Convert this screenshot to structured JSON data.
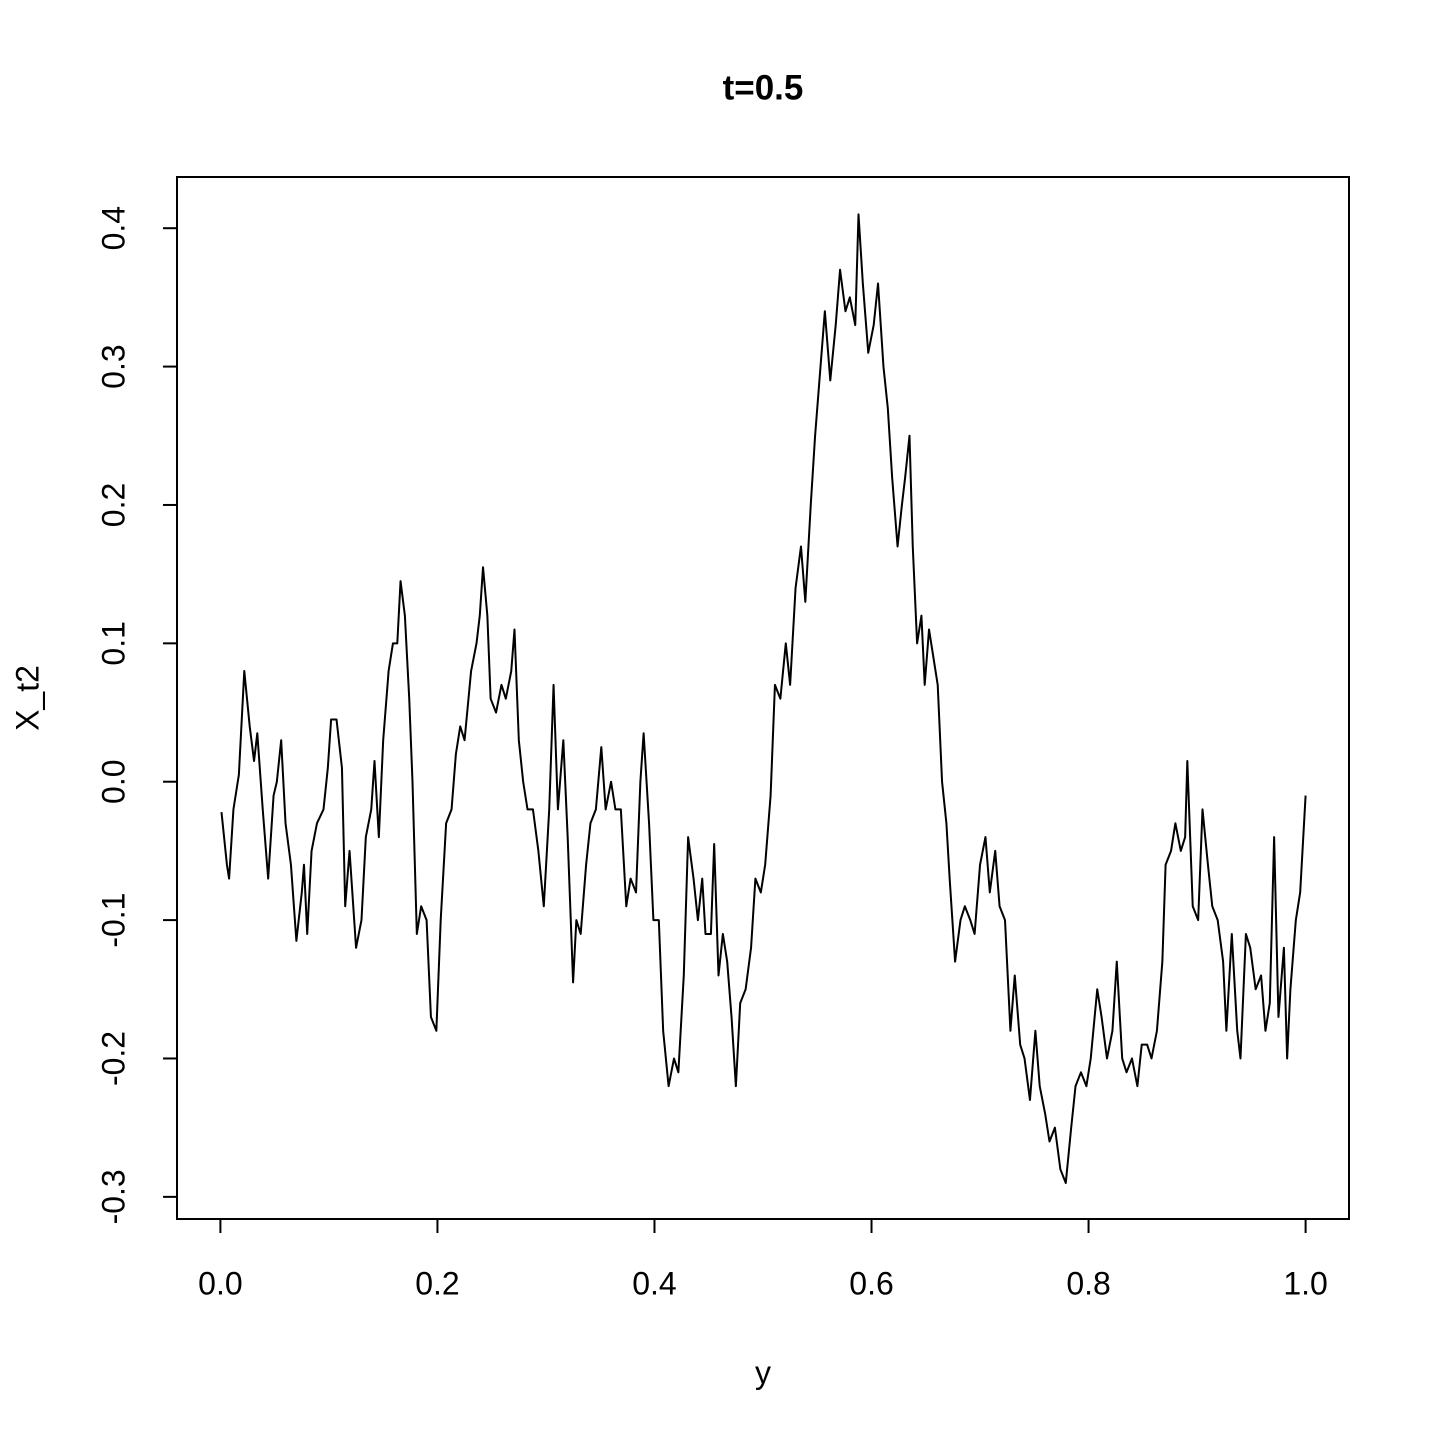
{
  "chart_data": {
    "type": "line",
    "title": "t=0.5",
    "x_label": "y",
    "y_label": "X_t2",
    "x": [
      0.001,
      0.006,
      0.008,
      0.012,
      0.017,
      0.022,
      0.027,
      0.031,
      0.034,
      0.039,
      0.044,
      0.049,
      0.052,
      0.056,
      0.06,
      0.065,
      0.07,
      0.075,
      0.077,
      0.08,
      0.084,
      0.089,
      0.095,
      0.099,
      0.102,
      0.107,
      0.112,
      0.115,
      0.119,
      0.125,
      0.13,
      0.134,
      0.139,
      0.142,
      0.146,
      0.15,
      0.155,
      0.159,
      0.163,
      0.166,
      0.17,
      0.174,
      0.177,
      0.181,
      0.185,
      0.19,
      0.194,
      0.199,
      0.203,
      0.208,
      0.213,
      0.217,
      0.221,
      0.225,
      0.231,
      0.236,
      0.239,
      0.242,
      0.246,
      0.249,
      0.254,
      0.259,
      0.263,
      0.268,
      0.271,
      0.275,
      0.279,
      0.283,
      0.288,
      0.293,
      0.298,
      0.303,
      0.307,
      0.311,
      0.316,
      0.32,
      0.325,
      0.328,
      0.332,
      0.337,
      0.341,
      0.346,
      0.351,
      0.355,
      0.36,
      0.364,
      0.369,
      0.374,
      0.378,
      0.383,
      0.387,
      0.39,
      0.395,
      0.399,
      0.404,
      0.408,
      0.413,
      0.418,
      0.422,
      0.427,
      0.431,
      0.436,
      0.44,
      0.444,
      0.447,
      0.452,
      0.455,
      0.459,
      0.463,
      0.467,
      0.471,
      0.475,
      0.479,
      0.484,
      0.489,
      0.493,
      0.498,
      0.502,
      0.507,
      0.511,
      0.516,
      0.521,
      0.525,
      0.53,
      0.535,
      0.539,
      0.544,
      0.548,
      0.553,
      0.557,
      0.562,
      0.567,
      0.571,
      0.576,
      0.58,
      0.585,
      0.588,
      0.592,
      0.597,
      0.602,
      0.606,
      0.611,
      0.615,
      0.619,
      0.624,
      0.628,
      0.631,
      0.635,
      0.638,
      0.642,
      0.646,
      0.649,
      0.653,
      0.657,
      0.661,
      0.665,
      0.669,
      0.672,
      0.677,
      0.682,
      0.686,
      0.691,
      0.695,
      0.7,
      0.705,
      0.709,
      0.714,
      0.718,
      0.723,
      0.728,
      0.732,
      0.737,
      0.741,
      0.746,
      0.751,
      0.755,
      0.76,
      0.764,
      0.769,
      0.774,
      0.779,
      0.784,
      0.788,
      0.793,
      0.798,
      0.802,
      0.808,
      0.812,
      0.817,
      0.822,
      0.826,
      0.831,
      0.835,
      0.84,
      0.845,
      0.849,
      0.854,
      0.858,
      0.863,
      0.868,
      0.871,
      0.876,
      0.88,
      0.885,
      0.889,
      0.891,
      0.896,
      0.901,
      0.905,
      0.91,
      0.914,
      0.919,
      0.924,
      0.927,
      0.932,
      0.937,
      0.94,
      0.945,
      0.949,
      0.954,
      0.959,
      0.963,
      0.967,
      0.971,
      0.975,
      0.98,
      0.983,
      0.986,
      0.991,
      0.995,
      1.0
    ],
    "values": [
      -0.022,
      -0.06,
      -0.07,
      -0.02,
      0.005,
      0.08,
      0.04,
      0.015,
      0.035,
      -0.02,
      -0.07,
      -0.01,
      0.0,
      0.03,
      -0.03,
      -0.06,
      -0.115,
      -0.08,
      -0.06,
      -0.11,
      -0.05,
      -0.03,
      -0.02,
      0.01,
      0.045,
      0.045,
      0.01,
      -0.09,
      -0.05,
      -0.12,
      -0.1,
      -0.04,
      -0.02,
      0.015,
      -0.04,
      0.03,
      0.08,
      0.1,
      0.1,
      0.145,
      0.12,
      0.06,
      0.0,
      -0.11,
      -0.09,
      -0.1,
      -0.17,
      -0.18,
      -0.1,
      -0.03,
      -0.02,
      0.02,
      0.04,
      0.03,
      0.08,
      0.1,
      0.12,
      0.155,
      0.12,
      0.06,
      0.05,
      0.07,
      0.06,
      0.08,
      0.11,
      0.03,
      0.0,
      -0.02,
      -0.02,
      -0.05,
      -0.09,
      -0.02,
      0.07,
      -0.02,
      0.03,
      -0.04,
      -0.145,
      -0.1,
      -0.11,
      -0.06,
      -0.03,
      -0.02,
      0.025,
      -0.02,
      0.0,
      -0.02,
      -0.02,
      -0.09,
      -0.07,
      -0.08,
      0.0,
      0.035,
      -0.03,
      -0.1,
      -0.1,
      -0.18,
      -0.22,
      -0.2,
      -0.21,
      -0.14,
      -0.04,
      -0.07,
      -0.1,
      -0.07,
      -0.11,
      -0.11,
      -0.045,
      -0.14,
      -0.11,
      -0.13,
      -0.17,
      -0.22,
      -0.16,
      -0.15,
      -0.12,
      -0.07,
      -0.08,
      -0.06,
      -0.01,
      0.07,
      0.06,
      0.1,
      0.07,
      0.14,
      0.17,
      0.13,
      0.2,
      0.25,
      0.3,
      0.34,
      0.29,
      0.33,
      0.37,
      0.34,
      0.35,
      0.33,
      0.41,
      0.36,
      0.31,
      0.33,
      0.36,
      0.3,
      0.27,
      0.22,
      0.17,
      0.2,
      0.22,
      0.25,
      0.17,
      0.1,
      0.12,
      0.07,
      0.11,
      0.09,
      0.07,
      0.0,
      -0.03,
      -0.07,
      -0.13,
      -0.1,
      -0.09,
      -0.1,
      -0.11,
      -0.06,
      -0.04,
      -0.08,
      -0.05,
      -0.09,
      -0.1,
      -0.18,
      -0.14,
      -0.19,
      -0.2,
      -0.23,
      -0.18,
      -0.22,
      -0.24,
      -0.26,
      -0.25,
      -0.28,
      -0.29,
      -0.25,
      -0.22,
      -0.21,
      -0.22,
      -0.2,
      -0.15,
      -0.17,
      -0.2,
      -0.18,
      -0.13,
      -0.2,
      -0.21,
      -0.2,
      -0.22,
      -0.19,
      -0.19,
      -0.2,
      -0.18,
      -0.13,
      -0.06,
      -0.05,
      -0.03,
      -0.05,
      -0.04,
      0.015,
      -0.09,
      -0.1,
      -0.02,
      -0.06,
      -0.09,
      -0.1,
      -0.13,
      -0.18,
      -0.11,
      -0.18,
      -0.2,
      -0.11,
      -0.12,
      -0.15,
      -0.14,
      -0.18,
      -0.16,
      -0.04,
      -0.17,
      -0.12,
      -0.2,
      -0.15,
      -0.1,
      -0.08,
      -0.01
    ],
    "color": "#000000",
    "xlim": [
      -0.04,
      1.04
    ],
    "ylim": [
      -0.316,
      0.437
    ],
    "xticks": [
      {
        "value": 0,
        "label": "0.0"
      },
      0.2,
      0.4,
      0.6,
      0.8,
      {
        "value": 1,
        "label": "1.0"
      }
    ],
    "yticks": [
      -0.3,
      -0.2,
      -0.1,
      {
        "value": 0,
        "label": "0.0"
      },
      0.1,
      0.2,
      0.3,
      0.4
    ]
  }
}
